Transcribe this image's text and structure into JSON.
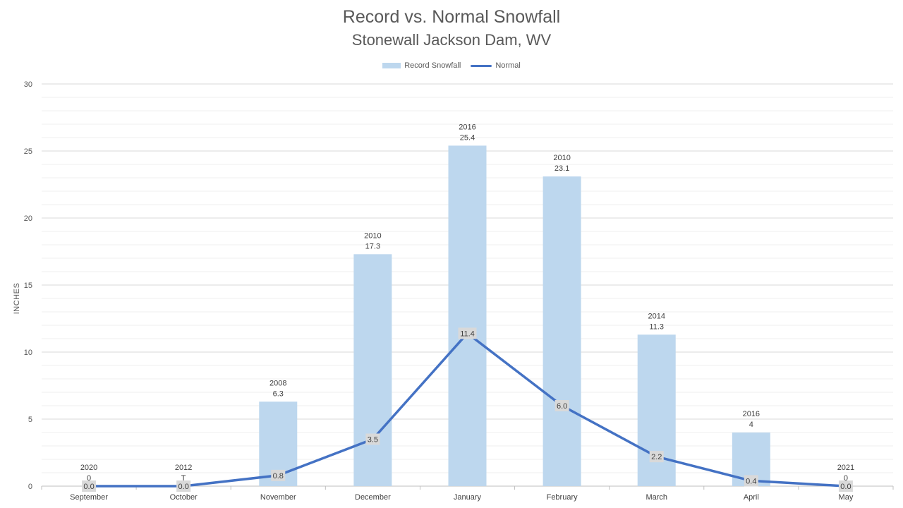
{
  "chart_data": {
    "type": "bar",
    "title": "Record vs. Normal Snowfall",
    "subtitle": "Stonewall Jackson Dam, WV",
    "ylabel": "INCHES",
    "xlabel": "",
    "ylim": [
      0,
      30
    ],
    "ytick_step": 5,
    "grid": true,
    "legend_position": "top-center",
    "categories": [
      "September",
      "October",
      "November",
      "December",
      "January",
      "February",
      "March",
      "April",
      "May"
    ],
    "series": [
      {
        "name": "Record Snowfall",
        "kind": "bar",
        "color": "#bdd7ee",
        "values": [
          0,
          0,
          6.3,
          17.3,
          25.4,
          23.1,
          11.3,
          4,
          0
        ],
        "labels": [
          "0",
          "T",
          "6.3",
          "17.3",
          "25.4",
          "23.1",
          "11.3",
          "4",
          "0"
        ],
        "years": [
          "2020",
          "2012",
          "2008",
          "2010",
          "2016",
          "2010",
          "2014",
          "2016",
          "2021"
        ]
      },
      {
        "name": "Normal",
        "kind": "line",
        "color": "#4472c4",
        "values": [
          0.0,
          0.0,
          0.8,
          3.5,
          11.4,
          6.0,
          2.2,
          0.4,
          0.0
        ],
        "labels": [
          "0.0",
          "0.0",
          "0.8",
          "3.5",
          "11.4",
          "6.0",
          "2.2",
          "0.4",
          "0.0"
        ]
      }
    ]
  }
}
